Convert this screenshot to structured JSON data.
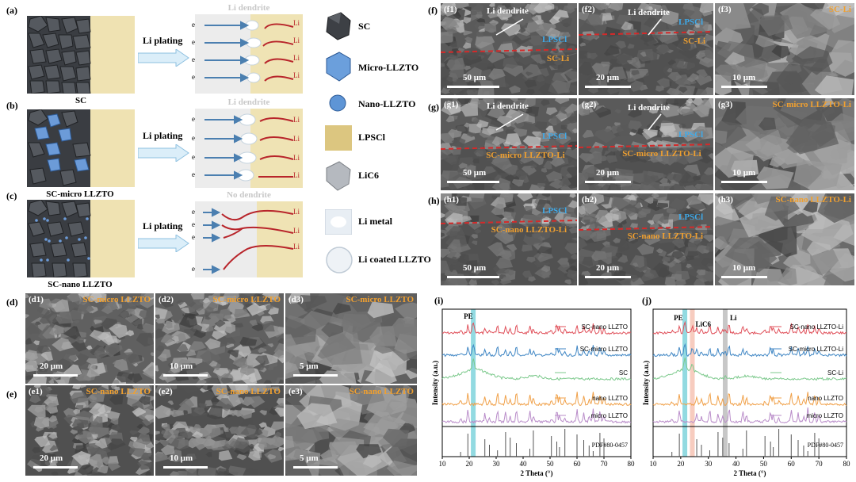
{
  "panels_left": {
    "a": {
      "label": "(a)",
      "caption": "SC",
      "arrow": "Li  plating",
      "top_label": "Li dendrite"
    },
    "b": {
      "label": "(b)",
      "caption": "SC-micro LLZTO",
      "arrow": "Li  plating",
      "top_label": "Li dendrite"
    },
    "c": {
      "label": "(c)",
      "caption": "SC-nano LLZTO",
      "arrow": "Li  plating",
      "top_label": "No dendrite"
    },
    "e_minus": "e",
    "li_plus": "Li"
  },
  "legend": [
    "SC",
    "Micro-LLZTO",
    "Nano-LLZTO",
    "LPSCl",
    "LiC6",
    "Li metal",
    "Li coated LLZTO"
  ],
  "sem_rows": {
    "f": {
      "label": "(f)",
      "tiles": [
        {
          "tag": "(f1)",
          "title": "",
          "scale": "50 μm",
          "annot": "Li dendrite",
          "blue": "LPSCl",
          "orange": "SC-Li"
        },
        {
          "tag": "(f2)",
          "title": "",
          "scale": "20 μm",
          "annot": "Li dendrite",
          "blue": "LPSCl",
          "orange": "SC-Li"
        },
        {
          "tag": "(f3)",
          "title": "SC-Li",
          "scale": "10 μm",
          "annot": "",
          "blue": "",
          "orange": ""
        }
      ]
    },
    "g": {
      "label": "(g)",
      "tiles": [
        {
          "tag": "(g1)",
          "title": "",
          "scale": "50 μm",
          "annot": "Li dendrite",
          "blue": "LPSCl",
          "orange": "SC-micro LLZTO-Li"
        },
        {
          "tag": "(g2)",
          "title": "",
          "scale": "20 μm",
          "annot": "Li dendrite",
          "blue": "LPSCl",
          "orange": "SC-micro LLZTO-Li"
        },
        {
          "tag": "(g3)",
          "title": "SC-micro LLZTO-Li",
          "scale": "10 μm",
          "annot": "",
          "blue": "",
          "orange": ""
        }
      ]
    },
    "h": {
      "label": "(h)",
      "tiles": [
        {
          "tag": "(h1)",
          "title": "",
          "scale": "50 μm",
          "annot": "",
          "blue": "LPSCl",
          "orange": "SC-nano LLZTO-Li"
        },
        {
          "tag": "(h2)",
          "title": "",
          "scale": "20 μm",
          "annot": "",
          "blue": "LPSCl",
          "orange": "SC-nano LLZTO-Li"
        },
        {
          "tag": "(h3)",
          "title": "SC-nano LLZTO-Li",
          "scale": "10 μm",
          "annot": "",
          "blue": "",
          "orange": ""
        }
      ]
    },
    "d": {
      "label": "(d)",
      "tiles": [
        {
          "tag": "(d1)",
          "title": "SC-micro LLZTO",
          "scale": "20 μm"
        },
        {
          "tag": "(d2)",
          "title": "SC-micro LLZTO",
          "scale": "10 μm"
        },
        {
          "tag": "(d3)",
          "title": "SC-micro LLZTO",
          "scale": "5 μm"
        }
      ]
    },
    "e": {
      "label": "(e)",
      "tiles": [
        {
          "tag": "(e1)",
          "title": "SC-nano LLZTO",
          "scale": "20 μm"
        },
        {
          "tag": "(e2)",
          "title": "SC-nano LLZTO",
          "scale": "10 μm"
        },
        {
          "tag": "(e3)",
          "title": "SC-nano LLZTO",
          "scale": "5 μm"
        }
      ]
    }
  },
  "chart_data": [
    {
      "type": "line",
      "panel": "(i)",
      "xlabel": "2 Theta (°)",
      "ylabel": "Intensity (a.u.)",
      "xlim": [
        10,
        80
      ],
      "xticks": [
        10,
        20,
        30,
        40,
        50,
        60,
        70,
        80
      ],
      "annotation": "PE",
      "reference": "PDF#80-0457",
      "series": [
        {
          "name": "SC-nano LLZTO",
          "color": "#e0505a"
        },
        {
          "name": "SC-micro LLZTO",
          "color": "#3f86c4"
        },
        {
          "name": "SC",
          "color": "#7cc98c"
        },
        {
          "name": "nano LLZTO",
          "color": "#f0a048"
        },
        {
          "name": "micro LLZTO",
          "color": "#b98cc9"
        }
      ],
      "ref_peaks": [
        16.8,
        19.5,
        25.8,
        27.5,
        30.5,
        33.5,
        35.2,
        37.5,
        42.5,
        43.8,
        50.5,
        52.5,
        53.5,
        55.5,
        60.0,
        62.5,
        64.5,
        66.0,
        68.5,
        70.0
      ],
      "highlight": {
        "center": 21.5,
        "color": "#7fd3dc"
      }
    },
    {
      "type": "line",
      "panel": "(j)",
      "xlabel": "2 Theta (°)",
      "ylabel": "Intensity (a.u.)",
      "xlim": [
        10,
        80
      ],
      "xticks": [
        10,
        20,
        30,
        40,
        50,
        60,
        70,
        80
      ],
      "annotations": [
        "PE",
        "LiC6",
        "Li"
      ],
      "reference": "PDF#80-0457",
      "series": [
        {
          "name": "SC-nano LLZTO-Li",
          "color": "#e0505a"
        },
        {
          "name": "SC-micro LLZTO-Li",
          "color": "#3f86c4"
        },
        {
          "name": "SC-Li",
          "color": "#7cc98c"
        },
        {
          "name": "nano LLZTO",
          "color": "#f0a048"
        },
        {
          "name": "micro LLZTO",
          "color": "#b98cc9"
        }
      ],
      "ref_peaks": [
        16.8,
        19.5,
        25.8,
        27.5,
        30.5,
        33.5,
        35.2,
        37.5,
        42.5,
        43.8,
        50.5,
        52.5,
        53.5,
        55.5,
        60.0,
        62.5,
        64.5,
        66.0,
        68.5,
        70.0
      ],
      "highlights": [
        {
          "center": 21.5,
          "color": "#7fd3dc"
        },
        {
          "center": 24.2,
          "color": "#f6c3b4"
        },
        {
          "center": 36.1,
          "color": "#bdbdbd"
        }
      ]
    }
  ]
}
